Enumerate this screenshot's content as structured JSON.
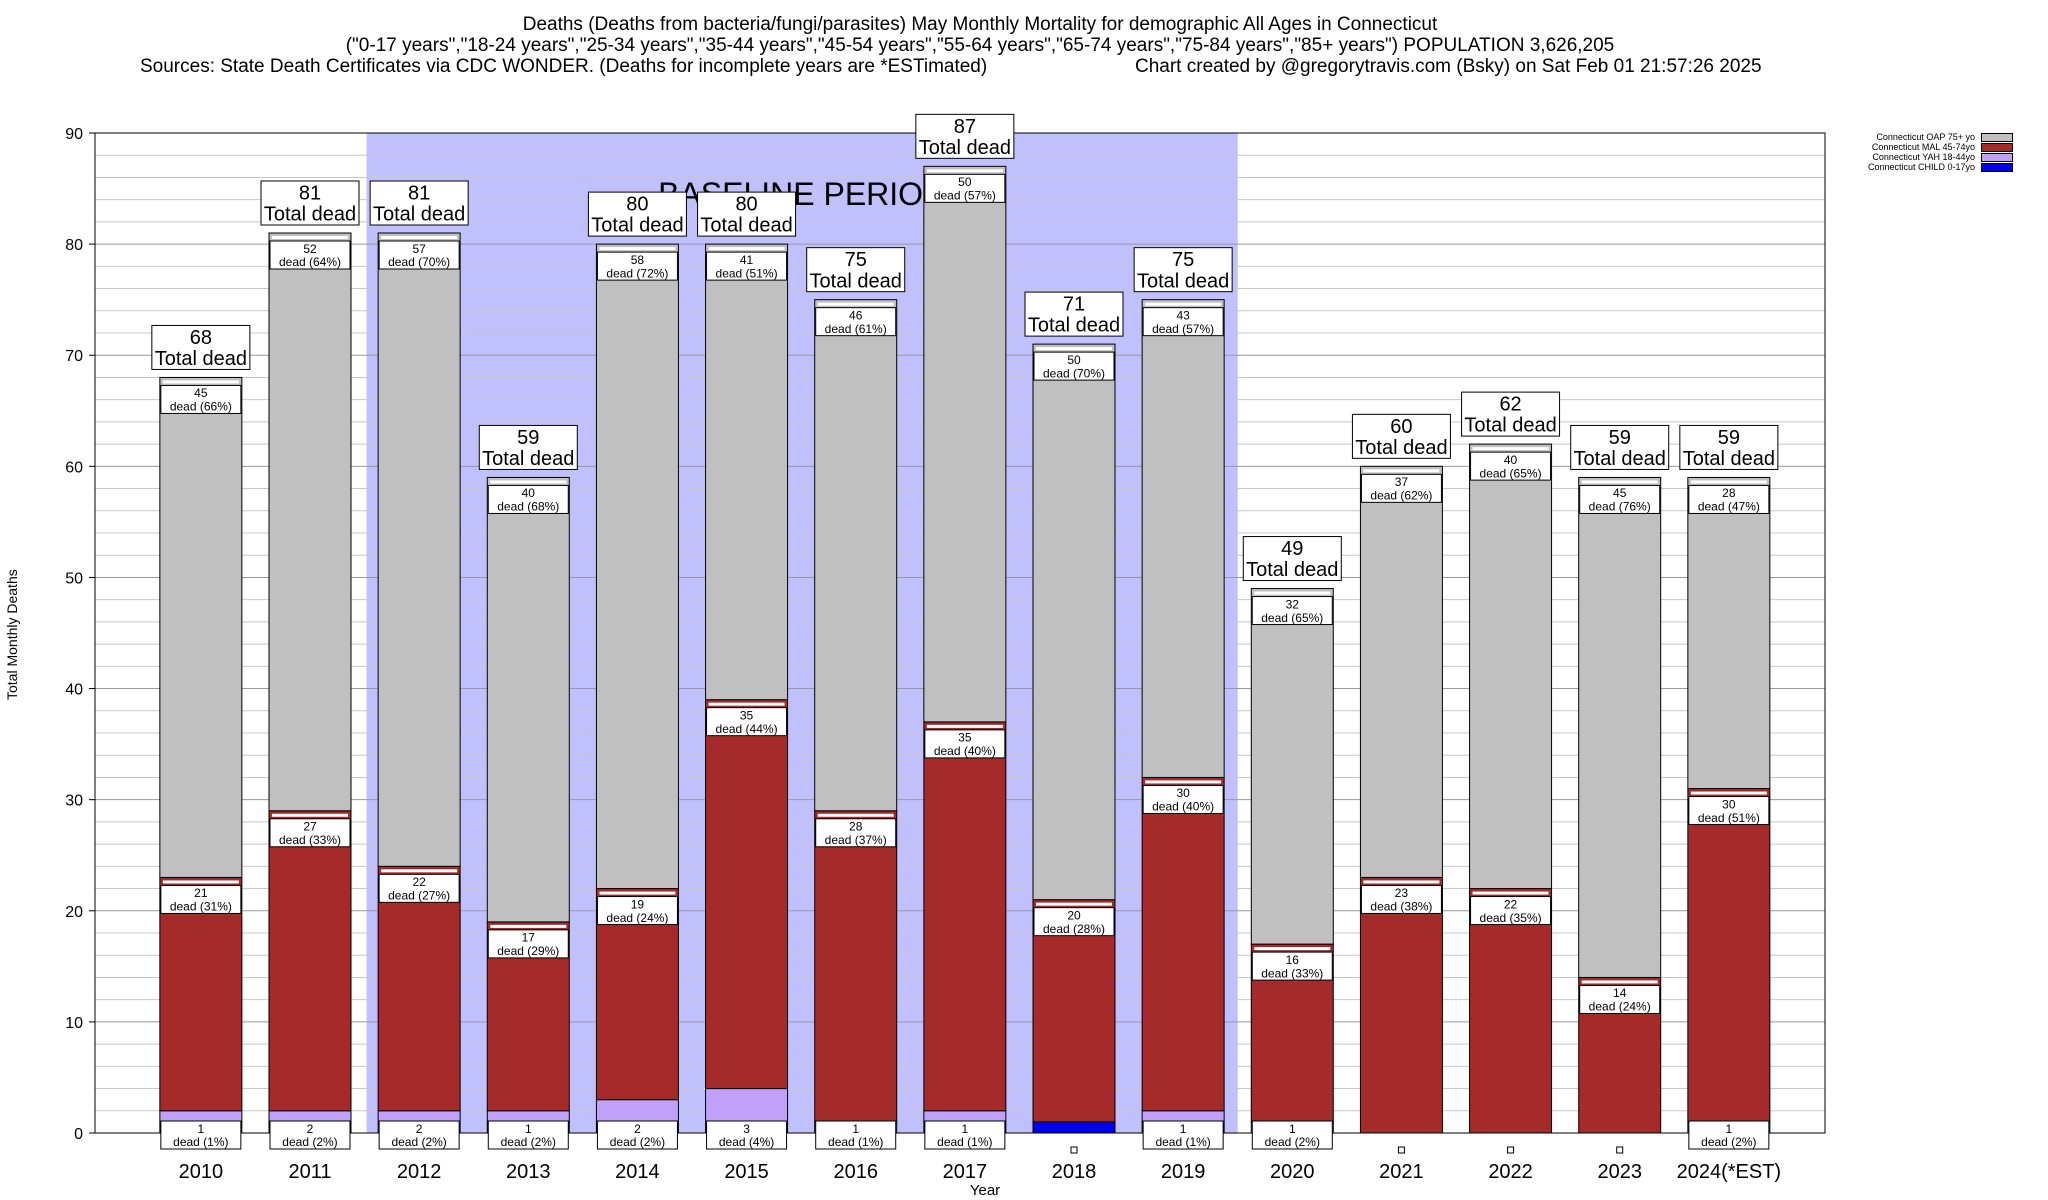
{
  "header": {
    "title_line1": "Deaths (Deaths from bacteria/fungi/parasites) May Monthly Mortality for demographic All Ages in Connecticut",
    "title_line2": "(\"0-17 years\",\"18-24 years\",\"25-34 years\",\"35-44 years\",\"45-54 years\",\"55-64 years\",\"65-74 years\",\"75-84 years\",\"85+ years\") POPULATION 3,626,205",
    "sources": "Sources: State Death Certificates via CDC WONDER. (Deaths for incomplete years are *ESTimated)",
    "created": "Chart created by @gregorytravis.com (Bsky) on Sat Feb 01 21:57:26 2025"
  },
  "chart_data": {
    "type": "bar",
    "stacked": true,
    "xlabel": "Year",
    "ylabel": "Total Monthly Deaths",
    "ylim": [
      0,
      90
    ],
    "yticks": [
      0,
      10,
      20,
      30,
      40,
      50,
      60,
      70,
      80,
      90
    ],
    "minor_grid_step": 2,
    "grid": true,
    "baseline_label": "BASELINE PERIOD",
    "baseline_range": [
      "2012",
      "2019"
    ],
    "legend_position": "top-right",
    "total_label": "Total dead",
    "dead_label": "dead",
    "categories": [
      "2010",
      "2011",
      "2012",
      "2013",
      "2014",
      "2015",
      "2016",
      "2017",
      "2018",
      "2019",
      "2020",
      "2021",
      "2022",
      "2023",
      "2024(*EST)"
    ],
    "totals": [
      68,
      81,
      81,
      59,
      80,
      80,
      75,
      87,
      71,
      75,
      49,
      60,
      62,
      59,
      59
    ],
    "series": [
      {
        "name": "Connecticut CHILD 0-17yo",
        "color": "#0000ee",
        "values": [
          1,
          0,
          0,
          1,
          1,
          1,
          0,
          1,
          1,
          1,
          0,
          0,
          0,
          0,
          0
        ],
        "labels": [
          null,
          null,
          null,
          null,
          null,
          null,
          null,
          null,
          null,
          null,
          null,
          null,
          null,
          null,
          null
        ]
      },
      {
        "name": "Connecticut YAH 18-44yo",
        "color": "#c0a0f8",
        "values": [
          1,
          2,
          2,
          1,
          2,
          3,
          1,
          1,
          0,
          1,
          1,
          0,
          0,
          0,
          1
        ],
        "labels": [
          "1|dead (1%)",
          "2|dead (2%)",
          "2|dead (2%)",
          "1|dead (2%)",
          "2|dead (2%)",
          "3|dead (4%)",
          "1|dead (1%)",
          "1|dead (1%)",
          null,
          "1|dead (1%)",
          "1|dead (2%)",
          null,
          null,
          null,
          "1|dead (2%)"
        ]
      },
      {
        "name": "Connecticut MAL 45-74yo",
        "color": "#a52a2a",
        "values": [
          21,
          27,
          22,
          17,
          19,
          35,
          28,
          35,
          20,
          30,
          16,
          23,
          22,
          14,
          30
        ],
        "labels": [
          "21|dead (31%)",
          "27|dead (33%)",
          "22|dead (27%)",
          "17|dead (29%)",
          "19|dead (24%)",
          "35|dead (44%)",
          "28|dead (37%)",
          "35|dead (40%)",
          "20|dead (28%)",
          "30|dead (40%)",
          "16|dead (33%)",
          "23|dead (38%)",
          "22|dead (35%)",
          "14|dead (24%)",
          "30|dead (51%)"
        ]
      },
      {
        "name": "Connecticut OAP 75+ yo",
        "color": "#c0c0c0",
        "values": [
          45,
          52,
          57,
          40,
          58,
          41,
          46,
          50,
          50,
          43,
          32,
          37,
          40,
          45,
          28
        ],
        "labels": [
          "45|dead (66%)",
          "52|dead (64%)",
          "57|dead (70%)",
          "40|dead (68%)",
          "58|dead (72%)",
          "41|dead (51%)",
          "46|dead (61%)",
          "50|dead (57%)",
          "50|dead (70%)",
          "43|dead (57%)",
          "32|dead (65%)",
          "37|dead (62%)",
          "40|dead (65%)",
          "45|dead (76%)",
          "28|dead (47%)"
        ]
      }
    ],
    "legend_order": [
      "Connecticut OAP 75+ yo",
      "Connecticut MAL 45-74yo",
      "Connecticut YAH 18-44yo",
      "Connecticut CHILD 0-17yo"
    ]
  }
}
